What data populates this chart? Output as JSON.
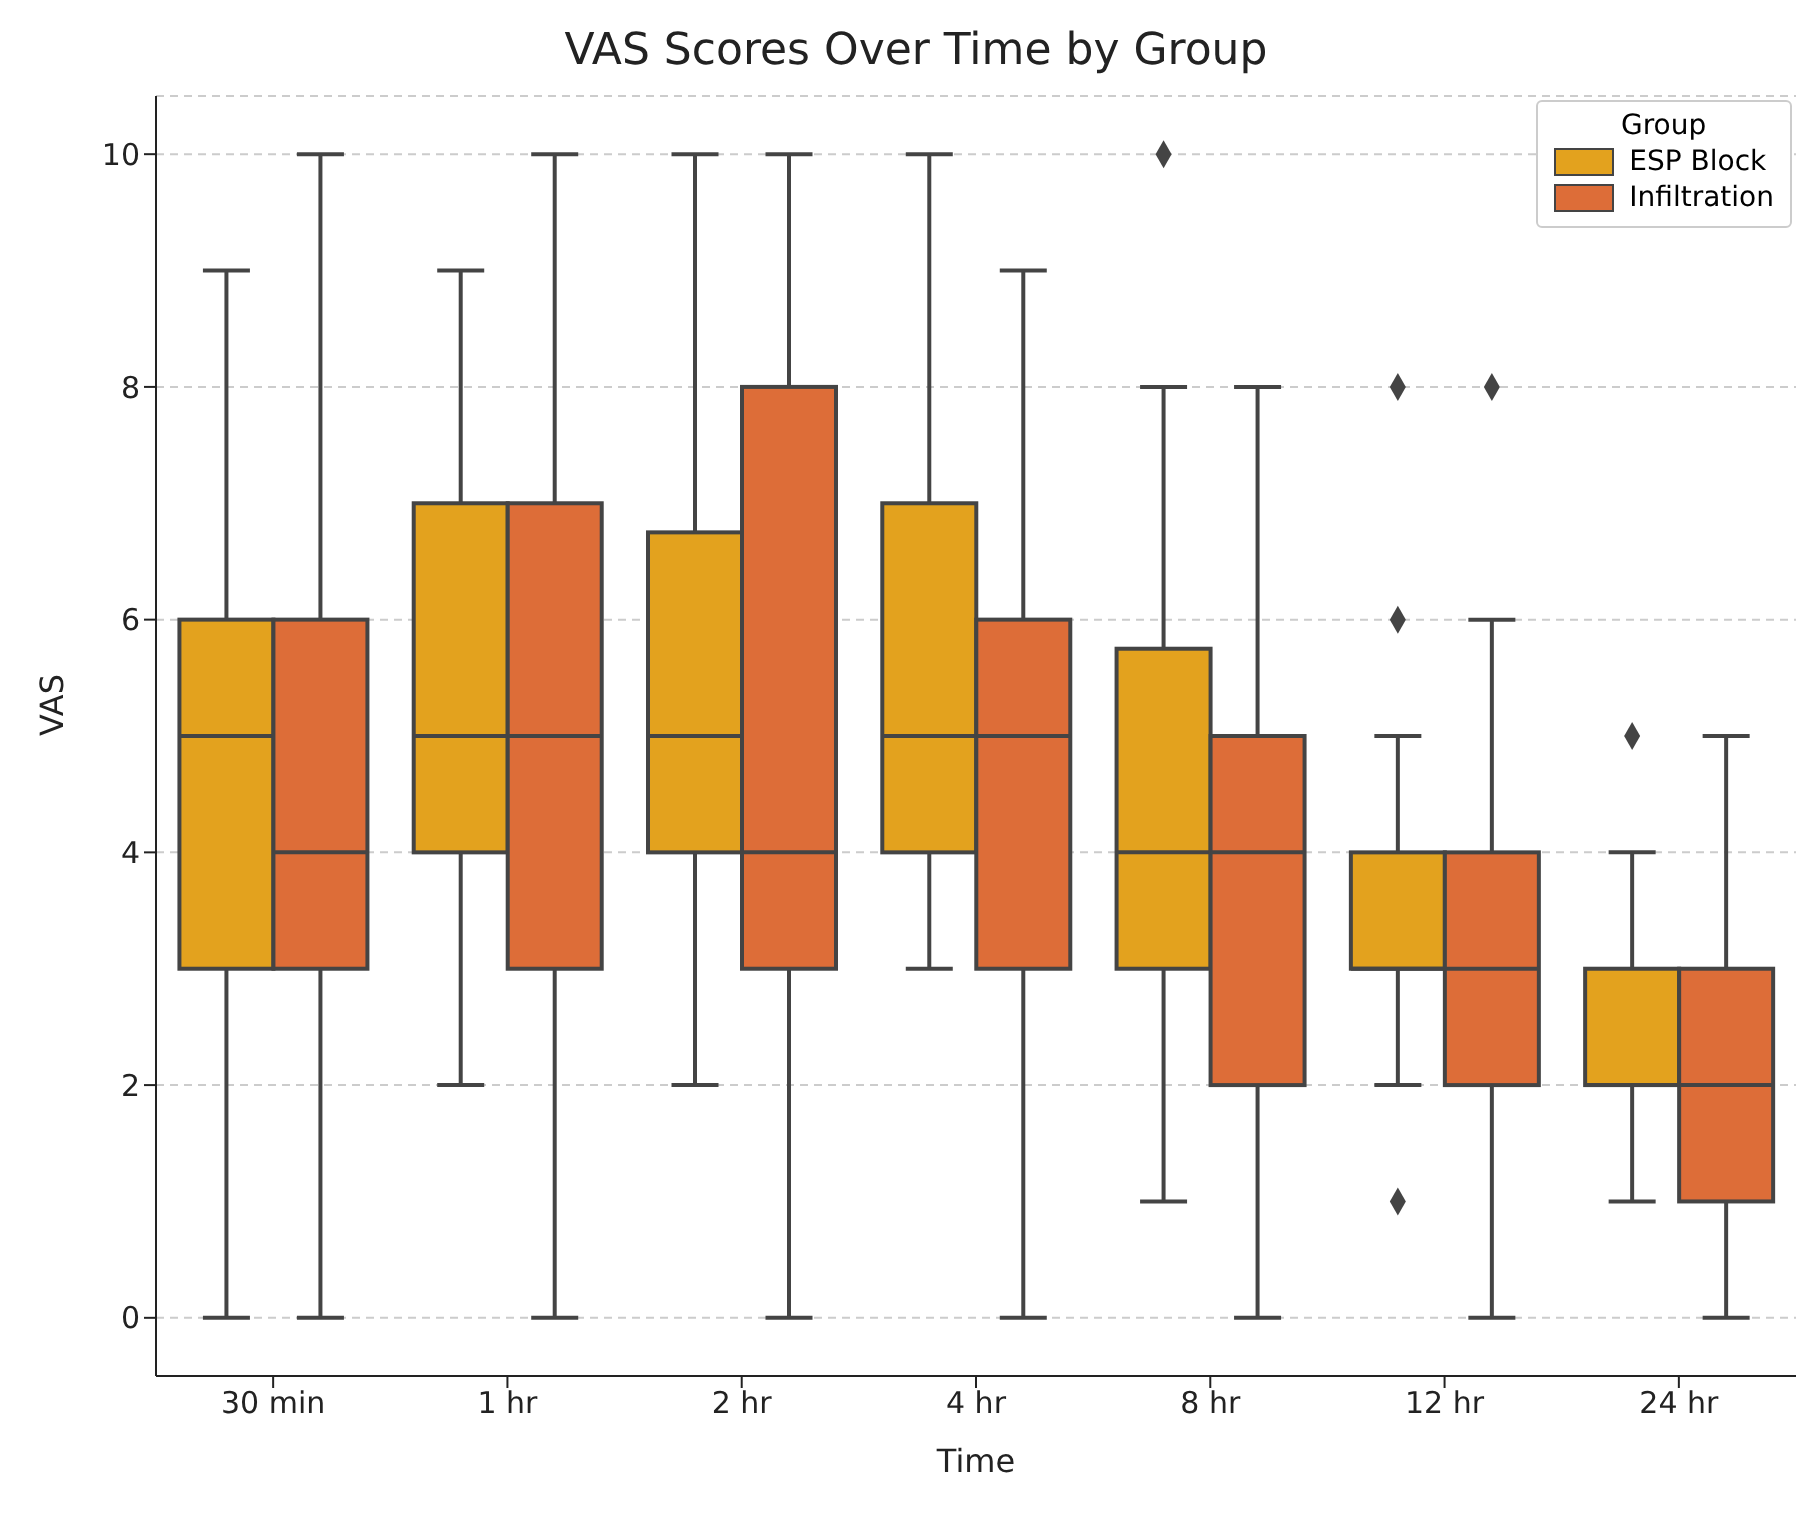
{
  "chart_data": {
    "type": "box",
    "title": "VAS Scores Over Time by Group",
    "xlabel": "Time",
    "ylabel": "VAS",
    "legend_title": "Group",
    "categories": [
      "30 min",
      "1 hr",
      "2 hr",
      "4 hr",
      "8 hr",
      "12 hr",
      "24 hr"
    ],
    "ylim": [
      -0.5,
      10.5
    ],
    "yticks": [
      0,
      2,
      4,
      6,
      8,
      10
    ],
    "grid": "y",
    "legend": "top right",
    "marker": "diamond",
    "series": [
      {
        "name": "ESP Block",
        "color": "#e3a21e",
        "boxes": [
          {
            "low": 0,
            "q1": 3,
            "median": 5,
            "q3": 6,
            "high": 9
          },
          {
            "low": 2,
            "q1": 4,
            "median": 5,
            "q3": 7,
            "high": 9
          },
          {
            "low": 2,
            "q1": 4,
            "median": 5,
            "q3": 6.75,
            "high": 10
          },
          {
            "low": 3,
            "q1": 4,
            "median": 5,
            "q3": 7,
            "high": 10
          },
          {
            "low": 1,
            "q1": 3,
            "median": 4,
            "q3": 5.75,
            "high": 8,
            "outliers": [
              10
            ]
          },
          {
            "low": 2,
            "q1": 3,
            "median": 3,
            "q3": 4,
            "high": 5,
            "outliers": [
              8,
              6,
              1
            ]
          },
          {
            "low": 1,
            "q1": 2,
            "median": 2,
            "q3": 3,
            "high": 4,
            "outliers": [
              5
            ]
          }
        ]
      },
      {
        "name": "Infiltration",
        "color": "#dd6d38",
        "boxes": [
          {
            "low": 0,
            "q1": 3,
            "median": 4,
            "q3": 6,
            "high": 10
          },
          {
            "low": 0,
            "q1": 3,
            "median": 5,
            "q3": 7,
            "high": 10
          },
          {
            "low": 0,
            "q1": 3,
            "median": 4,
            "q3": 8,
            "high": 10
          },
          {
            "low": 0,
            "q1": 3,
            "median": 5,
            "q3": 6,
            "high": 9
          },
          {
            "low": 0,
            "q1": 2,
            "median": 4,
            "q3": 5,
            "high": 8
          },
          {
            "low": 0,
            "q1": 2,
            "median": 3,
            "q3": 4,
            "high": 6,
            "outliers": [
              8
            ]
          },
          {
            "low": 0,
            "q1": 1,
            "median": 2,
            "q3": 3,
            "high": 5
          }
        ]
      }
    ]
  }
}
